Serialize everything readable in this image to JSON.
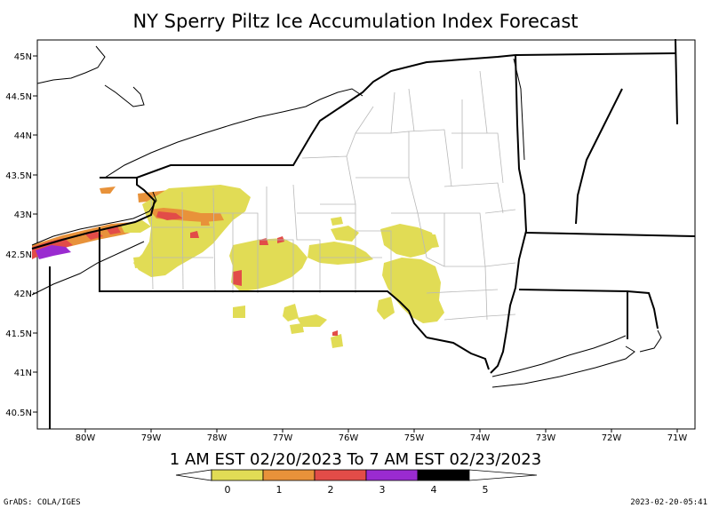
{
  "title": "NY Sperry Piltz Ice Accumulation Index Forecast",
  "subtitle": "1 AM EST 02/20/2023 To 7 AM EST 02/23/2023",
  "lat_labels": [
    "45N",
    "44.5N",
    "44N",
    "43.5N",
    "43N",
    "42.5N",
    "42N",
    "41.5N",
    "41N",
    "40.5N"
  ],
  "lon_labels": [
    "80W",
    "79W",
    "78W",
    "77W",
    "76W",
    "75W",
    "74W",
    "73W",
    "72W",
    "71W"
  ],
  "colorbar": {
    "ticks": [
      "0",
      "1",
      "2",
      "3",
      "4",
      "5"
    ],
    "colors": [
      "#e1dc55",
      "#e8923a",
      "#e24c48",
      "#9a2bd0",
      "#000000"
    ]
  },
  "footer_left": "GrADS: COLA/IGES",
  "footer_right": "2023-02-20-05:41"
}
